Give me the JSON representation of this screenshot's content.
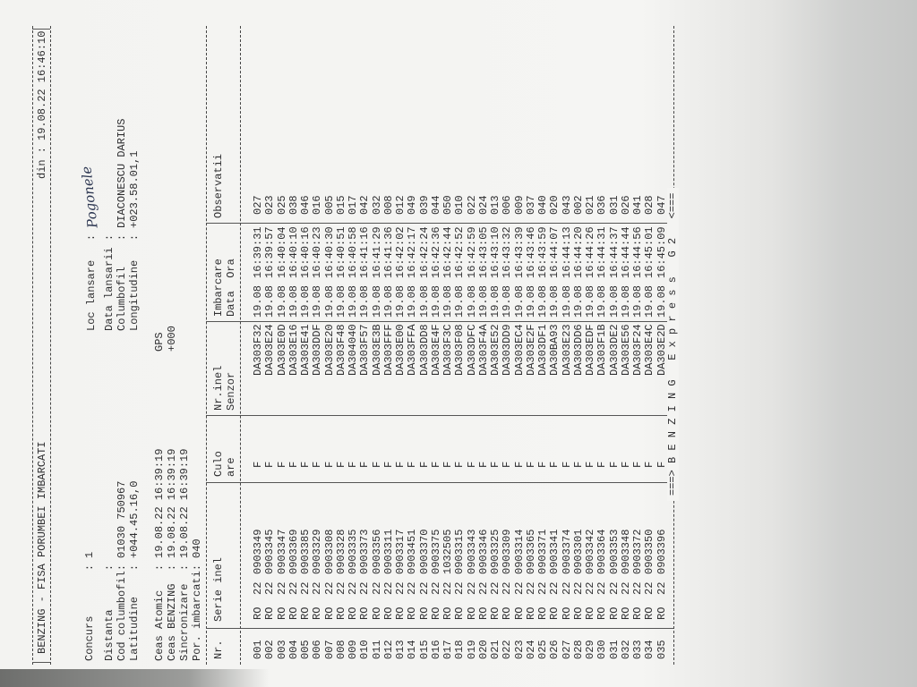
{
  "header": {
    "title": "BENZING - FISA PORUMBEI IMBARCATI",
    "date_label": "din :",
    "date": "19.08.22 16:46:10"
  },
  "race": {
    "concurs": {
      "label": "Concurs       :",
      "value": "1"
    },
    "loc_lansare": {
      "label": "Loc lansare   :",
      "value": "Pogonele"
    }
  },
  "info": {
    "left": [
      {
        "label": "Distanta      :"
      },
      {
        "label": "Cod columbofil:",
        "value": "01030 750967"
      },
      {
        "label": "Latitudine    :",
        "value": "+044.45.16,0"
      }
    ],
    "right": [
      {
        "label": "Data lansarii :"
      },
      {
        "label": "Columbofil    :",
        "value": "DIACONESCU DARIUS"
      },
      {
        "label": "Longitudine   :",
        "value": "+023.58.01,1"
      }
    ]
  },
  "clocks": [
    {
      "label": "Ceas Atomic   :",
      "value": "19.08.22 16:39:19",
      "note": "GPS"
    },
    {
      "label": "Ceas BENZING  :",
      "value": "19.08.22 16:39:19",
      "note": "+000"
    },
    {
      "label": "Sincronizare  :",
      "value": "19.08.22 16:39:19"
    }
  ],
  "embarked": {
    "label": "Por. imbarcati:",
    "value": "040"
  },
  "table": {
    "header": [
      [
        "Nr."
      ],
      [
        "Serie inel"
      ],
      [
        "Culo",
        "are"
      ],
      [
        "Nr.inel",
        "Senzor"
      ],
      [
        "Imbarcare",
        "Data  Ora"
      ],
      [
        "Observatii"
      ]
    ],
    "rows": [
      [
        "001",
        "RO",
        "22",
        "0903349",
        "F",
        "DA303F32",
        "19.08",
        "16:39:31",
        "027"
      ],
      [
        "002",
        "RO",
        "22",
        "0903345",
        "F",
        "DA303E24",
        "19.08",
        "16:39:57",
        "023"
      ],
      [
        "003",
        "RO",
        "22",
        "0903347",
        "F",
        "DA303E0D",
        "19.08",
        "16:40:04",
        "025"
      ],
      [
        "004",
        "RO",
        "22",
        "0903369",
        "F",
        "DA303E16",
        "19.08",
        "16:40:10",
        "038"
      ],
      [
        "005",
        "RO",
        "22",
        "0903385",
        "F",
        "DA303E41",
        "19.08",
        "16:40:16",
        "046"
      ],
      [
        "006",
        "RO",
        "22",
        "0903329",
        "F",
        "DA303DDF",
        "19.08",
        "16:40:23",
        "016"
      ],
      [
        "007",
        "RO",
        "22",
        "0903308",
        "F",
        "DA303E20",
        "19.08",
        "16:40:30",
        "005"
      ],
      [
        "008",
        "RO",
        "22",
        "0903328",
        "F",
        "DA303F48",
        "19.08",
        "16:40:51",
        "015"
      ],
      [
        "009",
        "RO",
        "22",
        "0903335",
        "F",
        "DA304040",
        "19.08",
        "16:40:58",
        "017"
      ],
      [
        "010",
        "RO",
        "22",
        "0903373",
        "F",
        "DA303F57",
        "19.08",
        "16:41:16",
        "042"
      ],
      [
        "011",
        "RO",
        "22",
        "0903356",
        "F",
        "DA303E3B",
        "19.08",
        "16:41:29",
        "032"
      ],
      [
        "012",
        "RO",
        "22",
        "0903311",
        "F",
        "DA303FFF",
        "19.08",
        "16:41:36",
        "008"
      ],
      [
        "013",
        "RO",
        "22",
        "0903317",
        "F",
        "DA303E00",
        "19.08",
        "16:42:02",
        "012"
      ],
      [
        "014",
        "RO",
        "22",
        "0903451",
        "F",
        "DA303FFA",
        "19.08",
        "16:42:17",
        "049"
      ],
      [
        "015",
        "RO",
        "22",
        "0903370",
        "F",
        "DA303DD8",
        "19.08",
        "16:42:24",
        "039"
      ],
      [
        "016",
        "RO",
        "22",
        "0903375",
        "F",
        "DA303E4F",
        "19.08",
        "16:42:36",
        "044"
      ],
      [
        "017",
        "RO",
        "22",
        "1032505",
        "F",
        "DA303F3C",
        "19.08",
        "16:42:44",
        "050"
      ],
      [
        "018",
        "RO",
        "22",
        "0903315",
        "F",
        "DA303F08",
        "19.08",
        "16:42:52",
        "010"
      ],
      [
        "019",
        "RO",
        "22",
        "0903343",
        "F",
        "DA303DFC",
        "19.08",
        "16:42:59",
        "022"
      ],
      [
        "020",
        "RO",
        "22",
        "0903346",
        "F",
        "DA303F4A",
        "19.08",
        "16:43:05",
        "024"
      ],
      [
        "021",
        "RO",
        "22",
        "0903325",
        "F",
        "DA303E52",
        "19.08",
        "16:43:10",
        "013"
      ],
      [
        "022",
        "RO",
        "22",
        "0903309",
        "F",
        "DA303DD9",
        "19.08",
        "16:43:32",
        "006"
      ],
      [
        "023",
        "RO",
        "22",
        "0903314",
        "F",
        "DA303EC4",
        "19.08",
        "16:43:39",
        "009"
      ],
      [
        "024",
        "RO",
        "22",
        "0903365",
        "F",
        "DA303E2F",
        "19.08",
        "16:43:46",
        "037"
      ],
      [
        "025",
        "RO",
        "22",
        "0903371",
        "F",
        "DA303DF1",
        "19.08",
        "16:43:59",
        "040"
      ],
      [
        "026",
        "RO",
        "22",
        "0903341",
        "F",
        "DA30BA93",
        "19.08",
        "16:44:07",
        "020"
      ],
      [
        "027",
        "RO",
        "22",
        "0903374",
        "F",
        "DA303E23",
        "19.08",
        "16:44:13",
        "043"
      ],
      [
        "028",
        "RO",
        "22",
        "0903301",
        "F",
        "DA303DD6",
        "19.08",
        "16:44:20",
        "002"
      ],
      [
        "029",
        "RO",
        "22",
        "0903342",
        "F",
        "DA303EDF",
        "19.08",
        "16:44:26",
        "021"
      ],
      [
        "030",
        "RO",
        "22",
        "0903364",
        "F",
        "DA303F1B",
        "19.08",
        "16:44:31",
        "036"
      ],
      [
        "031",
        "RO",
        "22",
        "0903353",
        "F",
        "DA303DE2",
        "19.08",
        "16:44:37",
        "031"
      ],
      [
        "032",
        "RO",
        "22",
        "0903348",
        "F",
        "DA303E56",
        "19.08",
        "16:44:44",
        "026"
      ],
      [
        "033",
        "RO",
        "22",
        "0903372",
        "F",
        "DA303F24",
        "19.08",
        "16:44:56",
        "041"
      ],
      [
        "034",
        "RO",
        "22",
        "0903350",
        "F",
        "DA303E4C",
        "19.08",
        "16:45:01",
        "028"
      ],
      [
        "035",
        "RO",
        "22",
        "0903396",
        "F",
        "DA303E2D",
        "19.08",
        "16:45:09",
        "047"
      ]
    ]
  },
  "footer": "===> B E N Z I N G   E x p r e s s   G 2   <==="
}
